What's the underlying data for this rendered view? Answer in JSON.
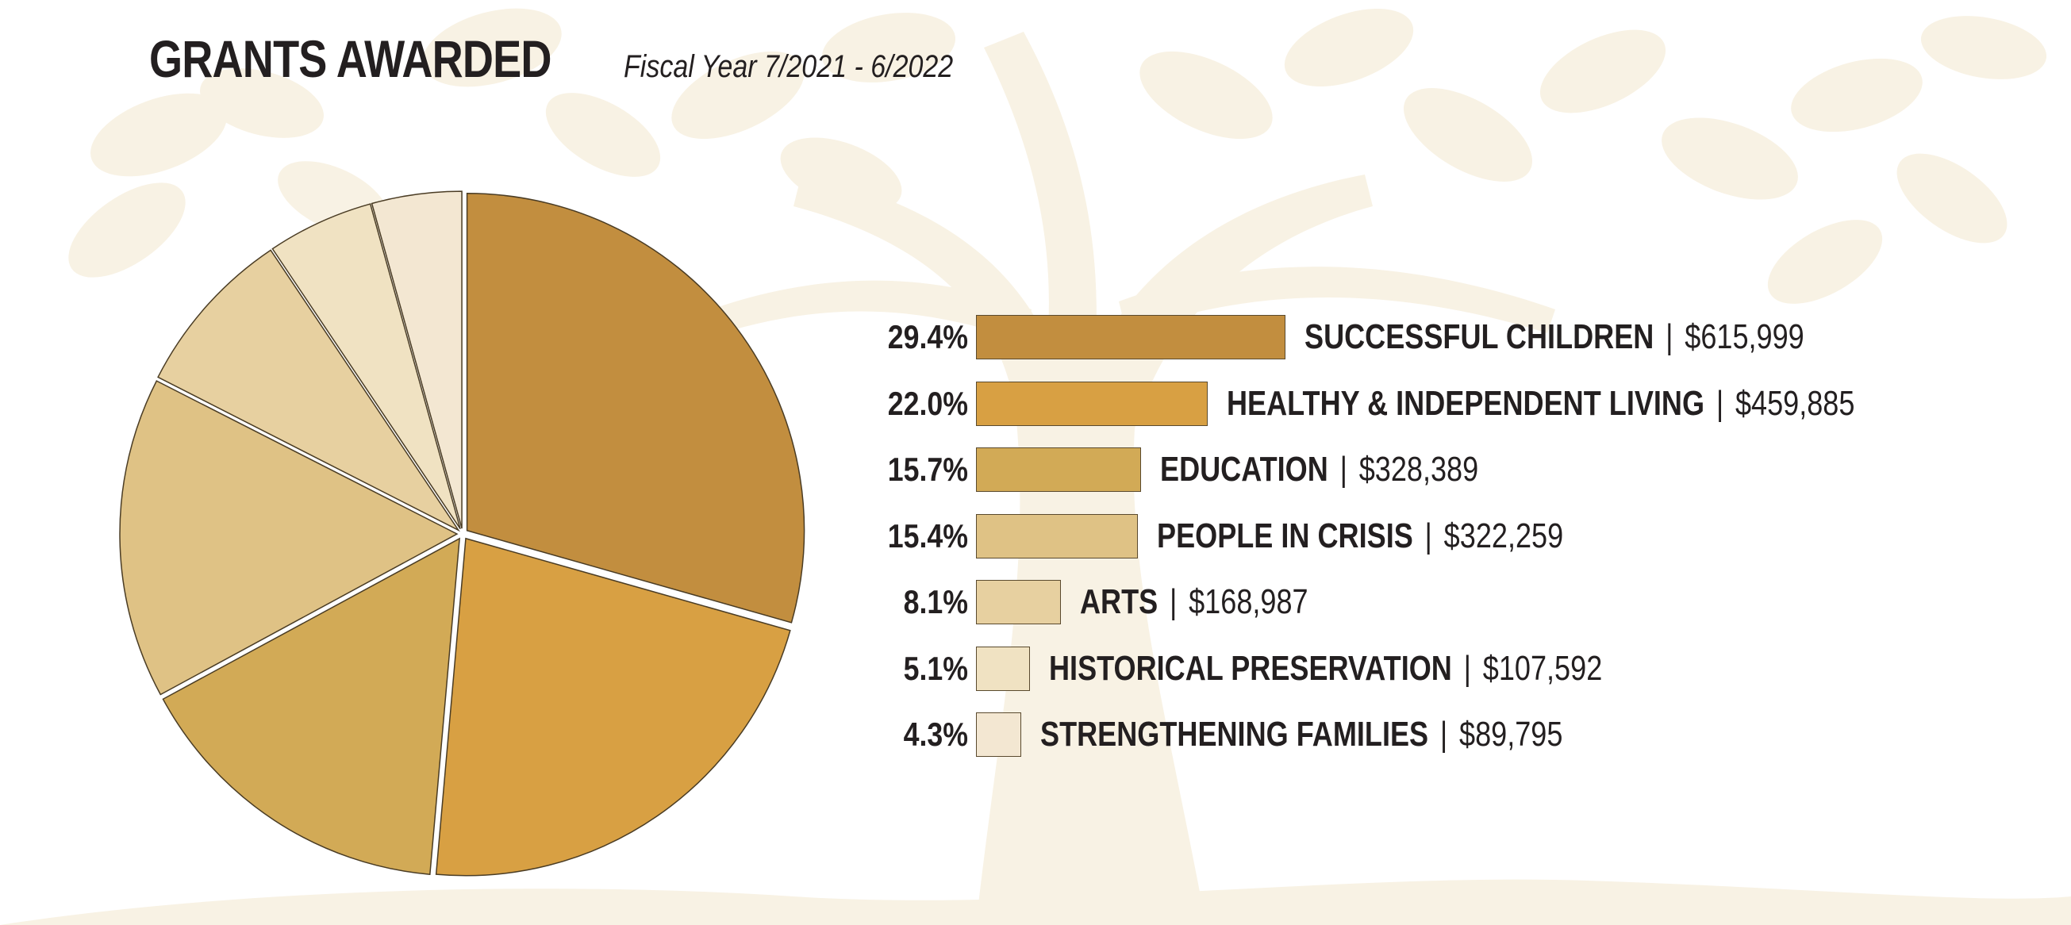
{
  "header": {
    "title": "GRANTS AWARDED",
    "subtitle": "Fiscal Year 7/2021 - 6/2022"
  },
  "chart_data": {
    "type": "pie",
    "title": "GRANTS AWARDED",
    "subtitle": "Fiscal Year 7/2021 - 6/2022",
    "categories": [
      "SUCCESSFUL CHILDREN",
      "HEALTHY & INDEPENDENT LIVING",
      "EDUCATION",
      "PEOPLE IN CRISIS",
      "ARTS",
      "HISTORICAL PRESERVATION",
      "STRENGTHENING FAMILIES"
    ],
    "percent_labels": [
      "29.4%",
      "22.0%",
      "15.7%",
      "15.4%",
      "8.1%",
      "5.1%",
      "4.3%"
    ],
    "values": [
      29.4,
      22.0,
      15.7,
      15.4,
      8.1,
      5.1,
      4.3
    ],
    "amount_labels": [
      "$615,999",
      "$459,885",
      "$328,389",
      "$322,259",
      "$168,987",
      "$107,592",
      "$89,795"
    ],
    "amounts": [
      615999,
      459885,
      328389,
      322259,
      168987,
      107592,
      89795
    ],
    "colors": [
      "#c28e3f",
      "#d8a043",
      "#d2aa56",
      "#dfc285",
      "#e7d0a0",
      "#f0e2c2",
      "#f3e7d2"
    ],
    "legend": "right",
    "separator": "|"
  }
}
